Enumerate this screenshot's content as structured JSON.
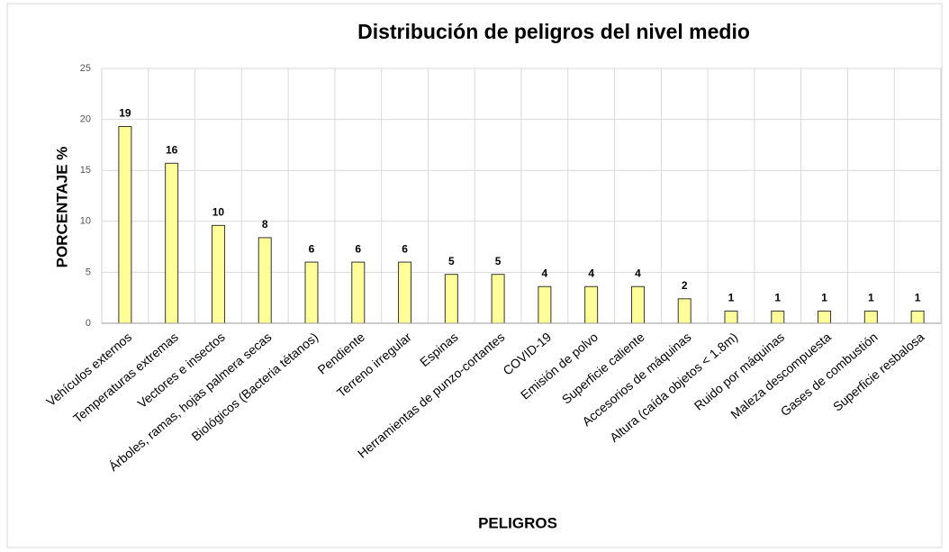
{
  "chart_data": {
    "type": "bar",
    "title": "Distribución de peligros del nivel medio",
    "x_label": "PELIGROS",
    "y_label": "PORCENTAJE %",
    "categories": [
      "Vehículos externos",
      "Temperaturas extremas",
      "Vectores e insectos",
      "Árboles, ramas, hojas palmera secas",
      "Biológicos (Bacteria tétanos)",
      "Pendiente",
      "Terreno irregular",
      "Espinas",
      "Herramientas de punzo-cortantes",
      "COVID-19",
      "Emisión de polvo",
      "Superficie caliente",
      "Accesorios de máquinas",
      "Altura (caída objetos < 1.8m)",
      "Ruido por  máquinas",
      "Maleza descompuesta",
      "Gases de combustión",
      "Superficie resbalosa"
    ],
    "values": [
      19.3,
      15.7,
      9.6,
      8.4,
      6.0,
      6.0,
      6.0,
      4.8,
      4.8,
      3.6,
      3.6,
      3.6,
      2.4,
      1.2,
      1.2,
      1.2,
      1.2,
      1.2
    ],
    "value_labels": [
      "19",
      "16",
      "10",
      "8",
      "6",
      "6",
      "6",
      "5",
      "5",
      "4",
      "4",
      "4",
      "2",
      "1",
      "1",
      "1",
      "1",
      "1"
    ],
    "color": "#ffff99",
    "ylim": [
      0,
      25
    ],
    "yticks": [
      0,
      5,
      10,
      15,
      20,
      25
    ],
    "grid": true
  }
}
